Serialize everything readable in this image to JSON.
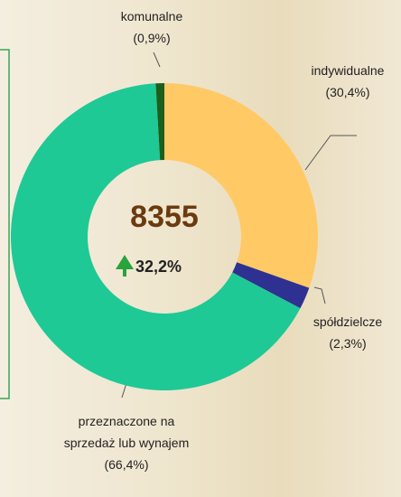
{
  "chart_data": {
    "type": "donut",
    "categories": [
      "indywidualne",
      "spółdzielcze",
      "przeznaczone na sprzedaż lub wynajem",
      "komunalne"
    ],
    "values": [
      30.4,
      2.3,
      66.4,
      0.9
    ],
    "value_labels": [
      "(30,4%)",
      "(2,3%)",
      "(66,4%)",
      "(0,9%)"
    ],
    "colors": [
      "#ffc966",
      "#2e3192",
      "#1ec995",
      "#1d5e1d"
    ],
    "center_label": "8355",
    "change_label": "32,2%"
  }
}
